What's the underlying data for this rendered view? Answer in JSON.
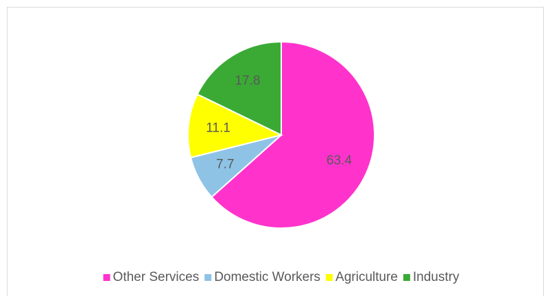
{
  "chart_data": {
    "type": "pie",
    "categories": [
      "Other Services",
      "Domestic Workers",
      "Agriculture",
      "Industry"
    ],
    "values": [
      63.4,
      7.7,
      11.1,
      17.8
    ],
    "colors": [
      "#ff33cc",
      "#8ec3e6",
      "#ffff00",
      "#3aaa35"
    ],
    "legend": "bottom"
  }
}
